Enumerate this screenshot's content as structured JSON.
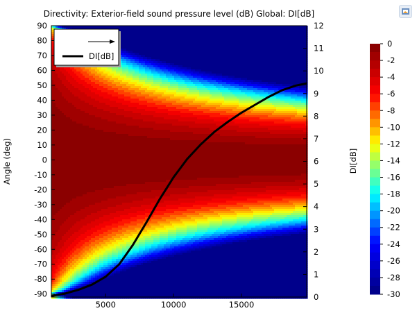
{
  "window": {
    "control_icon": "image-export-icon"
  },
  "chart_data": {
    "type": "heatmap",
    "title": "Directivity: Exterior-field sound pressure level (dB)  Global: DI[dB]",
    "xlabel": "",
    "ylabel_left": "Angle (deg)",
    "ylabel_right": "DI[dB]",
    "x_range": [
      1000,
      19800
    ],
    "y_left_range": [
      -92,
      90
    ],
    "y_right_range": [
      0,
      12
    ],
    "x_ticks": [
      "5000",
      "10000",
      "15000"
    ],
    "x_tick_values": [
      5000,
      10000,
      15000
    ],
    "y_left_ticks": [
      "-90",
      "-80",
      "-70",
      "-60",
      "-50",
      "-40",
      "-30",
      "-20",
      "-10",
      "0",
      "10",
      "20",
      "30",
      "40",
      "50",
      "60",
      "70",
      "80",
      "90"
    ],
    "y_right_ticks": [
      "0",
      "1",
      "2",
      "3",
      "4",
      "5",
      "6",
      "7",
      "8",
      "9",
      "10",
      "11",
      "12"
    ],
    "grid": false,
    "legend": {
      "placement": "top-left",
      "entries": [
        {
          "name": "",
          "style": "arrow"
        },
        {
          "name": "DI[dB]",
          "style": "line",
          "color": "#000000"
        }
      ]
    },
    "colorbar": {
      "ticks": [
        "0",
        "-2",
        "-4",
        "-6",
        "-8",
        "-10",
        "-12",
        "-14",
        "-16",
        "-18",
        "-20",
        "-22",
        "-24",
        "-26",
        "-28",
        "-30"
      ],
      "range": [
        -30,
        0
      ],
      "levels": 30,
      "colormap": [
        "#000080",
        "#0000ff",
        "#00ffff",
        "#ffff00",
        "#ff0000",
        "#800000"
      ]
    },
    "heatmap": {
      "z_unit": "dB",
      "model": "z = 20*log10(|cos(angle)|^(f/f0)) clipped to [-30, 0]",
      "f0_hz": 2500,
      "z_min": -30,
      "z_max": 0
    },
    "series": [
      {
        "name": "DI[dB]",
        "axis": "right",
        "color": "#000000",
        "x": [
          1000,
          2000,
          3000,
          4000,
          5000,
          6000,
          7000,
          8000,
          9000,
          10000,
          11000,
          12000,
          13000,
          14000,
          15000,
          16000,
          17000,
          18000,
          19000,
          19800
        ],
        "y": [
          0.05,
          0.15,
          0.32,
          0.55,
          0.9,
          1.45,
          2.3,
          3.3,
          4.35,
          5.3,
          6.1,
          6.75,
          7.3,
          7.75,
          8.15,
          8.5,
          8.85,
          9.15,
          9.35,
          9.45
        ]
      }
    ]
  }
}
